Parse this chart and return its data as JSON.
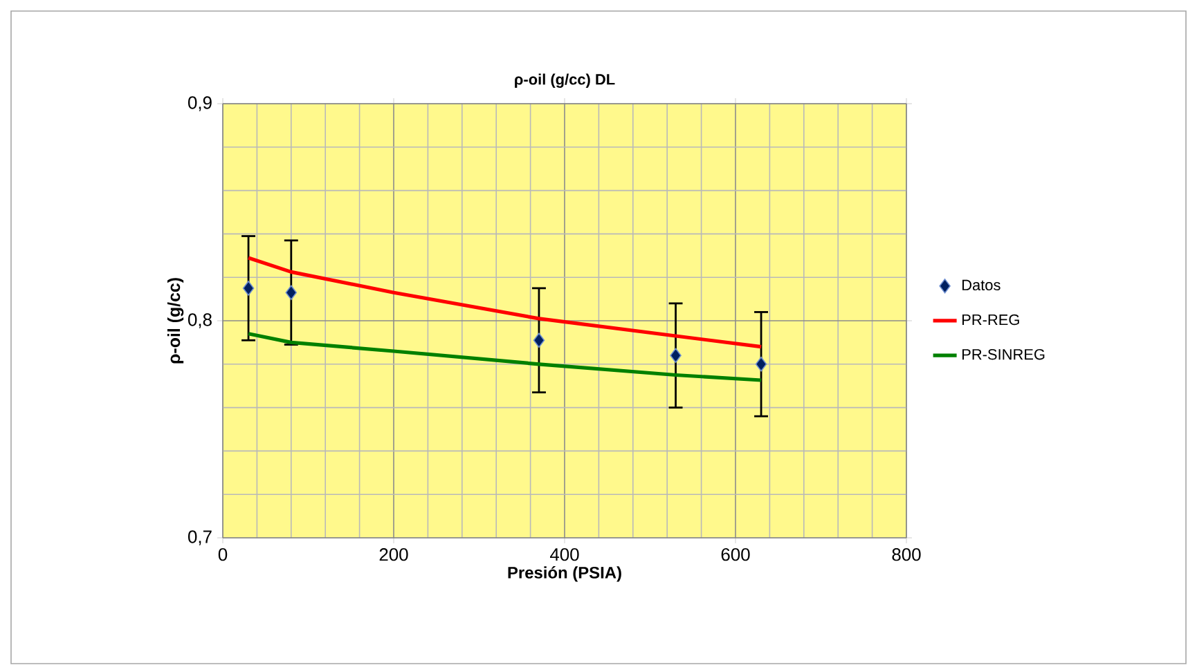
{
  "chart_data": {
    "type": "line",
    "title": "ρ-oil (g/cc) DL",
    "xlabel": "Presión (PSIA)",
    "ylabel": "ρ-oil (g/cc)",
    "xlim": [
      0,
      800
    ],
    "xticks": [
      0,
      200,
      400,
      600,
      800
    ],
    "ylim": [
      0.7,
      0.9
    ],
    "yticks": [
      {
        "value": 0.7,
        "label": "0,7"
      },
      {
        "value": 0.8,
        "label": "0,8"
      },
      {
        "value": 0.9,
        "label": "0,9"
      }
    ],
    "grid": true,
    "legend": "right",
    "series": [
      {
        "name": "Datos",
        "type": "scatter",
        "marker": "diamond",
        "color": "#002060",
        "x": [
          30,
          80,
          370,
          530,
          630
        ],
        "values": [
          0.815,
          0.813,
          0.791,
          0.784,
          0.78
        ],
        "errors": [
          0.024,
          0.024,
          0.024,
          0.024,
          0.024
        ]
      },
      {
        "name": "PR-REG",
        "color": "#ff0000",
        "x": [
          30,
          80,
          200,
          370,
          530,
          630
        ],
        "values": [
          0.829,
          0.8225,
          0.813,
          0.801,
          0.793,
          0.788
        ]
      },
      {
        "name": "PR-SINREG",
        "color": "#008000",
        "x": [
          30,
          80,
          200,
          370,
          530,
          630
        ],
        "values": [
          0.794,
          0.79,
          0.786,
          0.78,
          0.775,
          0.7726
        ]
      }
    ]
  }
}
